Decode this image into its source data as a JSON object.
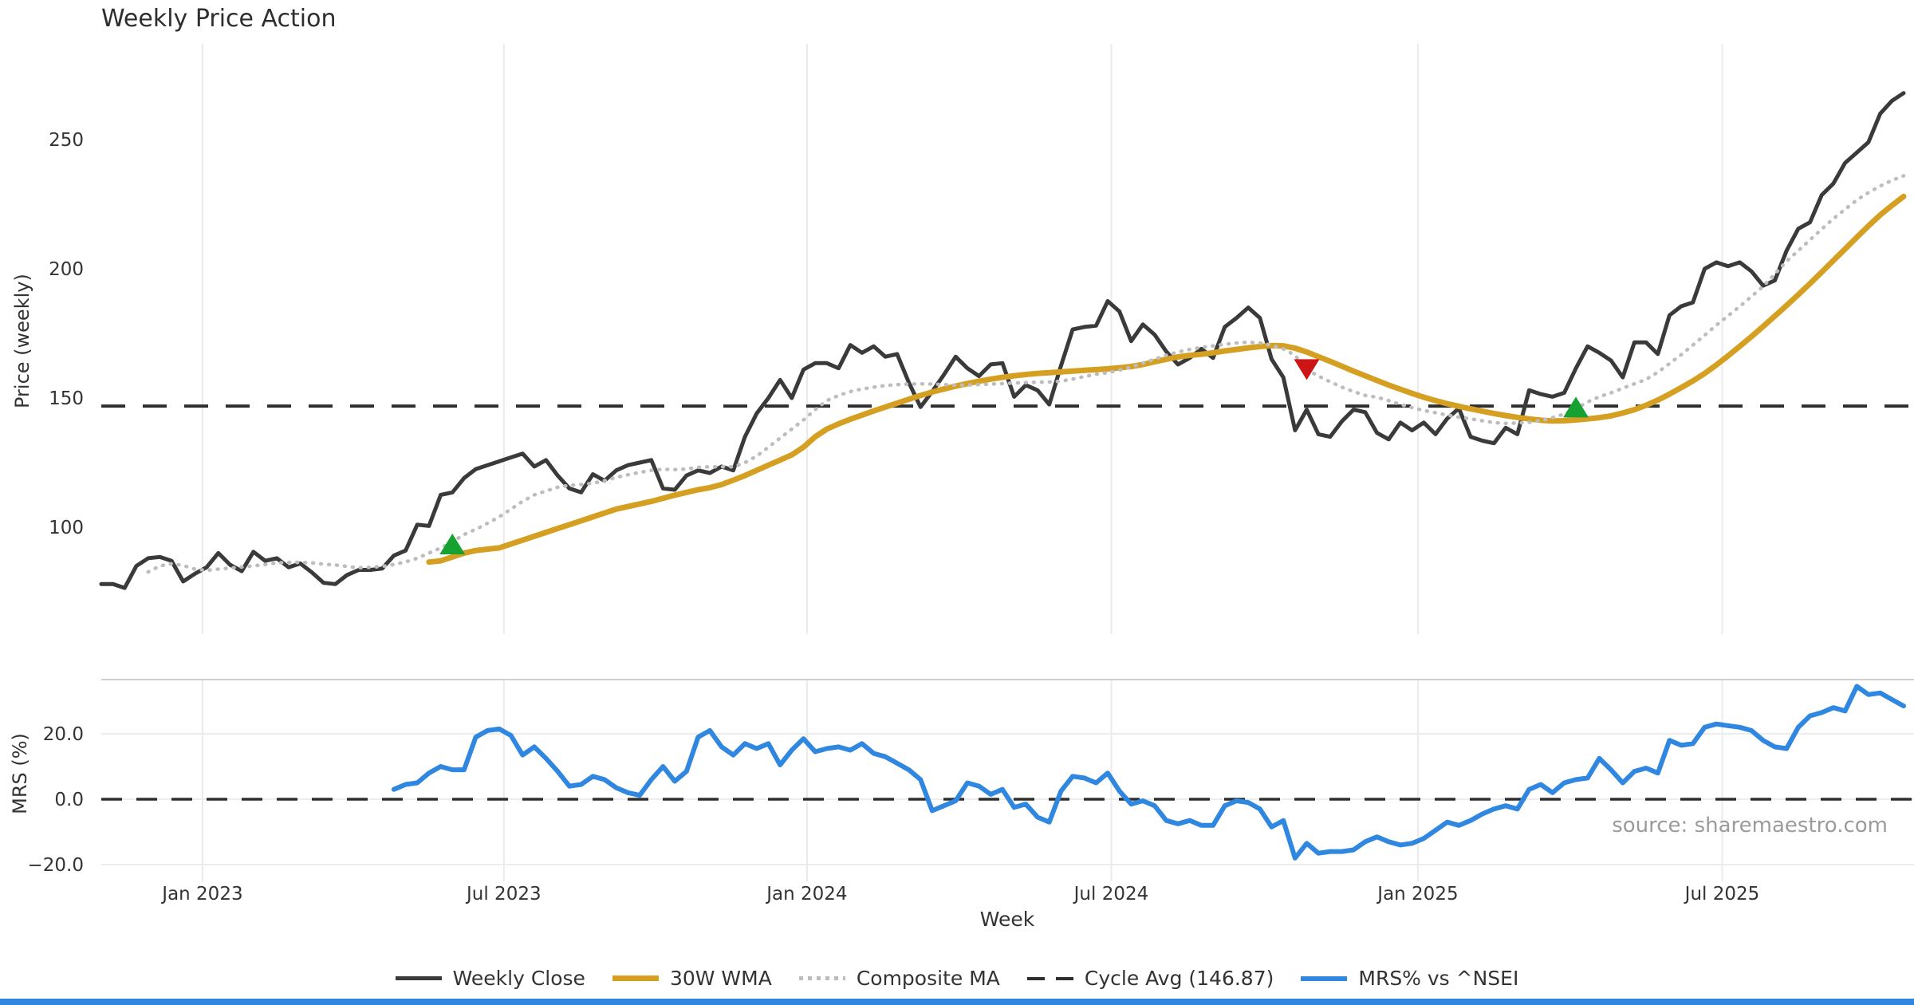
{
  "page": {
    "title": "Weekly Price Action",
    "source_note": "source: sharemaestro.com"
  },
  "chart_data": {
    "type": "line",
    "title": "Weekly Price Action",
    "xlabel": "Week",
    "grid": "vertical-light",
    "legend_position": "bottom-center",
    "panels": [
      {
        "name": "price",
        "ylabel": "Price (weekly)",
        "yticks": [
          100,
          150,
          200,
          250
        ],
        "ylim": [
          54,
          287
        ],
        "cycle_avg": 146.87
      },
      {
        "name": "mrs",
        "ylabel": "MRS (%)",
        "yticks": [
          -20,
          0,
          20
        ],
        "ylim": [
          -25,
          37
        ],
        "zero_line": 0
      }
    ],
    "xticks": [
      {
        "label": "Jan 2023",
        "week": 8.65
      },
      {
        "label": "Jul 2023",
        "week": 34.4
      },
      {
        "label": "Jan 2024",
        "week": 60.3
      },
      {
        "label": "Jul 2024",
        "week": 86.3
      },
      {
        "label": "Jan 2025",
        "week": 112.5
      },
      {
        "label": "Jul 2025",
        "week": 138.5
      }
    ],
    "weeks_total": 155,
    "series": [
      {
        "name": "Weekly Close",
        "panel": "price",
        "color": "#3a3a3a",
        "style": "solid",
        "width": 5,
        "values": [
          78,
          78,
          76.5,
          85,
          88,
          88.5,
          87,
          79,
          82,
          84.5,
          90,
          85.5,
          83,
          90.5,
          87,
          88,
          84.5,
          86,
          82.5,
          78.5,
          78,
          81.5,
          83.5,
          83.5,
          84,
          89,
          91,
          101,
          100.5,
          112.5,
          113.5,
          119,
          122.5,
          124,
          125.5,
          127,
          128.5,
          123.5,
          126,
          120,
          115,
          113.5,
          120.5,
          118,
          122,
          124,
          125,
          126,
          115,
          114.5,
          120,
          122,
          121,
          123.5,
          122,
          135,
          144,
          150,
          157,
          150,
          161,
          163.5,
          163.5,
          161.5,
          170.5,
          167.5,
          170,
          166,
          167,
          156,
          146.5,
          152.5,
          159,
          166,
          161.5,
          158.5,
          163,
          163.5,
          150.5,
          155,
          153,
          147.5,
          162.5,
          176.5,
          177.5,
          178,
          187.5,
          183.5,
          172,
          178.5,
          174.5,
          168,
          163,
          165.5,
          169,
          165.5,
          177.5,
          181,
          185,
          181,
          165,
          158,
          137.5,
          145.5,
          136,
          135,
          141,
          145.5,
          144.5,
          136.5,
          134,
          140.5,
          137.5,
          140.5,
          136,
          142,
          146,
          135,
          133.5,
          132.5,
          138.5,
          136,
          153,
          151.5,
          150.5,
          152,
          161.5,
          170,
          167.5,
          164.5,
          158,
          171.5,
          171.5,
          167,
          182,
          185.5,
          187,
          200,
          202.5,
          201,
          202.5,
          199,
          193.5,
          195.5,
          207,
          215.5,
          218,
          228.5,
          233,
          241,
          245,
          249,
          260,
          265,
          268
        ]
      },
      {
        "name": "30W WMA",
        "panel": "price",
        "color": "#d5a021",
        "style": "solid",
        "width": 7,
        "values": [
          null,
          null,
          null,
          null,
          null,
          null,
          null,
          null,
          null,
          null,
          null,
          null,
          null,
          null,
          null,
          null,
          null,
          null,
          null,
          null,
          null,
          null,
          null,
          null,
          null,
          null,
          null,
          null,
          86.5,
          87,
          88.5,
          90,
          91,
          91.5,
          92,
          93.5,
          95,
          96.5,
          98,
          99.5,
          101,
          102.5,
          104,
          105.5,
          107,
          108,
          109,
          110,
          111.2,
          112.4,
          113.5,
          114.5,
          115.3,
          116.5,
          118.2,
          120,
          122,
          124,
          126,
          128,
          131,
          135,
          138,
          140,
          141.8,
          143.4,
          145,
          146.5,
          148,
          149.5,
          151,
          152.3,
          153.5,
          154.6,
          155.6,
          156.5,
          157.3,
          158,
          158.6,
          159.1,
          159.5,
          159.8,
          160.1,
          160.4,
          160.7,
          161,
          161.3,
          161.7,
          162.2,
          163,
          164,
          165,
          165.9,
          166.5,
          166.9,
          167.5,
          168.2,
          168.8,
          169.4,
          169.9,
          170.3,
          170.2,
          169.3,
          167.8,
          166,
          164.2,
          162.3,
          160.4,
          158.6,
          156.8,
          155,
          153.4,
          151.8,
          150.3,
          149,
          147.8,
          146.8,
          145.8,
          144.9,
          144,
          143.2,
          142.5,
          141.9,
          141.4,
          141.1,
          141.2,
          141.5,
          141.9,
          142.4,
          143.1,
          144.2,
          145.5,
          147.2,
          149.2,
          151.5,
          154,
          156.6,
          159.5,
          162.8,
          166.3,
          170,
          173.8,
          177.7,
          181.7,
          185.8,
          190,
          194.3,
          198.7,
          203.2,
          207.7,
          212.2,
          216.6,
          220.8,
          224.5,
          228
        ]
      },
      {
        "name": "Composite MA",
        "panel": "price",
        "color": "#bdbdbd",
        "style": "dotted",
        "width": 4.5,
        "values": [
          null,
          null,
          null,
          null,
          82.7,
          85,
          85.9,
          85.2,
          83.8,
          83.3,
          83.8,
          84.2,
          84.6,
          85,
          85.6,
          86.2,
          86.4,
          86.4,
          86.2,
          85.7,
          85.4,
          84.8,
          84.3,
          84.5,
          84.8,
          85.6,
          86.6,
          88,
          90,
          92,
          94.3,
          97.2,
          99.2,
          101.5,
          104,
          107,
          110,
          112.5,
          114,
          115.5,
          116.2,
          116.5,
          117,
          118,
          119.3,
          120.3,
          121.2,
          122,
          122.4,
          122.3,
          122.5,
          123.2,
          123.4,
          123.4,
          123.4,
          125,
          127.5,
          131,
          134.5,
          138,
          141.5,
          145.5,
          149,
          151,
          152.5,
          153.5,
          154.2,
          154.8,
          155.2,
          155.4,
          155.5,
          155.4,
          155.2,
          155,
          155,
          155.2,
          155.4,
          155.6,
          155.8,
          156,
          156.1,
          156.2,
          156.5,
          157.3,
          158.3,
          159.2,
          159.8,
          160.8,
          162,
          163.5,
          165,
          166.5,
          167.8,
          168.8,
          169.6,
          170.2,
          170.8,
          171.3,
          171.6,
          171.3,
          170.5,
          169,
          166.5,
          161,
          158.5,
          156.3,
          154.2,
          152.5,
          151,
          150.3,
          149,
          147.5,
          146.3,
          145.2,
          144.3,
          143.4,
          142.6,
          141.9,
          141.2,
          140.5,
          140.2,
          140.3,
          140.6,
          141.3,
          142.4,
          143.8,
          145.8,
          148.5,
          150.5,
          152,
          153.8,
          155.5,
          157.2,
          160,
          163.3,
          166.8,
          170.5,
          174.3,
          178.2,
          181.8,
          185.4,
          189.3,
          193.2,
          198,
          202.9,
          207,
          211.2,
          215.3,
          219.4,
          223,
          226.6,
          229.5,
          232,
          234.2,
          236
        ]
      },
      {
        "name": "MRS% vs ^NSEI",
        "panel": "mrs",
        "color": "#2f87e0",
        "style": "solid",
        "width": 6,
        "values": [
          null,
          null,
          null,
          null,
          null,
          null,
          null,
          null,
          null,
          null,
          null,
          null,
          null,
          null,
          null,
          null,
          null,
          null,
          null,
          null,
          null,
          null,
          null,
          null,
          null,
          3,
          4.5,
          5,
          8,
          10,
          9,
          9,
          19,
          21,
          21.5,
          19.5,
          13.5,
          16,
          12.5,
          8.5,
          4,
          4.5,
          7,
          6,
          3.5,
          2,
          1.2,
          6,
          10,
          5.5,
          8.5,
          19,
          21,
          16,
          13.5,
          17,
          15.5,
          17,
          10.5,
          15,
          18.5,
          14.5,
          15.5,
          16,
          15,
          17,
          14,
          13,
          11,
          9,
          6,
          -3.5,
          -2,
          -0.5,
          5,
          4,
          1.5,
          3,
          -2.5,
          -1.5,
          -5.5,
          -7,
          2.5,
          7,
          6.5,
          5,
          8,
          2.5,
          -1.5,
          -0.5,
          -2,
          -6.5,
          -7.5,
          -6.5,
          -8,
          -8,
          -2,
          -0.5,
          -1,
          -3,
          -8.5,
          -6.5,
          -18,
          -13.5,
          -16.5,
          -16,
          -16,
          -15.5,
          -13,
          -11.5,
          -13,
          -14,
          -13.5,
          -12,
          -9.5,
          -7,
          -8,
          -6.5,
          -4.5,
          -3,
          -2,
          -3,
          3,
          4.5,
          2,
          5,
          6,
          6.5,
          12.5,
          9,
          5,
          8.5,
          9.5,
          8,
          18,
          16.5,
          17,
          22,
          23,
          22.5,
          22,
          21,
          18,
          16,
          15.5,
          22,
          25.5,
          26.5,
          28,
          27,
          34.5,
          32,
          32.5,
          30.5,
          28.5
        ]
      }
    ],
    "markers": [
      {
        "week": 30,
        "price": 93.5,
        "type": "buy",
        "shape": "triangle-up",
        "color": "#16a231"
      },
      {
        "week": 103,
        "price": 161,
        "type": "sell",
        "shape": "triangle-down",
        "color": "#cd1515"
      },
      {
        "week": 126,
        "price": 146.5,
        "type": "buy",
        "shape": "triangle-up",
        "color": "#16a231"
      }
    ],
    "cycle_avg_label": "Cycle Avg (146.87)",
    "legend": [
      {
        "label": "Weekly Close"
      },
      {
        "label": "30W WMA"
      },
      {
        "label": "Composite MA"
      },
      {
        "label": "Cycle Avg (146.87)"
      },
      {
        "label": "MRS% vs ^NSEI"
      }
    ]
  }
}
